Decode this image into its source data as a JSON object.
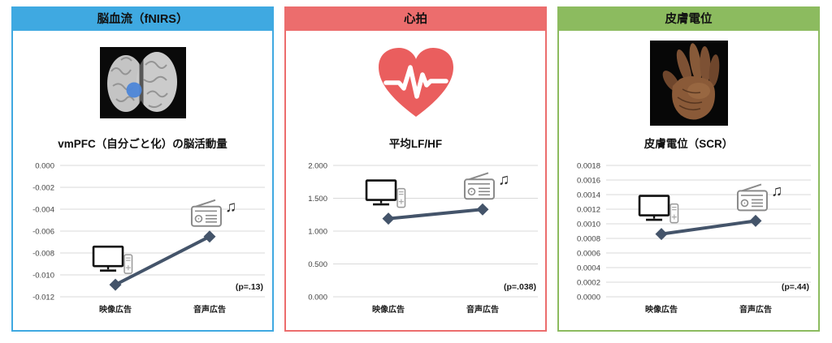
{
  "panels": [
    {
      "header": "脳血流（fNIRS）",
      "accent": "#3FA9E1",
      "image": "brain-vmpfc-image",
      "title": "vmPFC（自分ごと化）の脳活動量",
      "p_label": "(p=.13)"
    },
    {
      "header": "心拍",
      "accent": "#EC6D6D",
      "image": "heart-pulse-icon",
      "title": "平均LF/HF",
      "p_label": "(p=.038)"
    },
    {
      "header": "皮膚電位",
      "accent": "#8CBB5F",
      "image": "hand-palm-image",
      "title": "皮膚電位（SCR）",
      "p_label": "(p=.44)"
    }
  ],
  "chart_data": [
    {
      "type": "line",
      "title": "vmPFC（自分ごと化）の脳活動量",
      "categories": [
        "映像広告",
        "音声広告"
      ],
      "values": [
        -0.0109,
        -0.0065
      ],
      "ylim": [
        -0.012,
        0
      ],
      "yticks": [
        "0.000",
        "-0.002",
        "-0.004",
        "-0.006",
        "-0.008",
        "-0.010",
        "-0.012"
      ],
      "annotation": "(p=.13)",
      "line_color": "#44546A",
      "marker": "diamond",
      "grid": true,
      "legend": "none"
    },
    {
      "type": "line",
      "title": "平均LF/HF",
      "categories": [
        "映像広告",
        "音声広告"
      ],
      "values": [
        1.19,
        1.33
      ],
      "ylim": [
        0,
        2
      ],
      "yticks": [
        "2.000",
        "1.500",
        "1.000",
        "0.500",
        "0.000"
      ],
      "annotation": "(p=.038)",
      "line_color": "#44546A",
      "marker": "diamond",
      "grid": true,
      "legend": "none"
    },
    {
      "type": "line",
      "title": "皮膚電位（SCR）",
      "categories": [
        "映像広告",
        "音声広告"
      ],
      "values": [
        0.00086,
        0.00104
      ],
      "ylim": [
        0,
        0.0018
      ],
      "yticks": [
        "0.0018",
        "0.0016",
        "0.0014",
        "0.0012",
        "0.0010",
        "0.0008",
        "0.0006",
        "0.0004",
        "0.0002",
        "0.0000"
      ],
      "annotation": "(p=.44)",
      "line_color": "#44546A",
      "marker": "diamond",
      "grid": true,
      "legend": "none"
    }
  ],
  "colors": {
    "gridline": "#d9d9d9",
    "tick_text": "#3f3f3f",
    "category_text": "#1a1a1a",
    "heart": "#ea5e5e",
    "brain_marker_dot": "#4d86d8"
  }
}
